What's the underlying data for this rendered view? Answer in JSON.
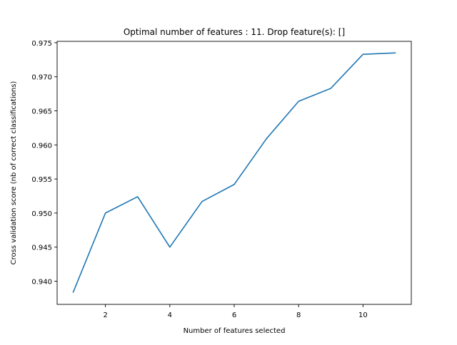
{
  "chart_data": {
    "type": "line",
    "title": "Optimal number of features : 11. Drop feature(s): []",
    "xlabel": "Number of features selected",
    "ylabel": "Cross validation score (nb of correct classifications)",
    "xlim": [
      0.5,
      11.5
    ],
    "ylim": [
      0.9366,
      0.9752
    ],
    "xticks": [
      2,
      4,
      6,
      8,
      10
    ],
    "yticks": [
      0.94,
      0.945,
      0.95,
      0.955,
      0.96,
      0.965,
      0.97,
      0.975
    ],
    "ytick_labels": [
      "0.940",
      "0.945",
      "0.950",
      "0.955",
      "0.960",
      "0.965",
      "0.970",
      "0.975"
    ],
    "grid": false,
    "series": [
      {
        "color": "#1f77b4",
        "x": [
          1,
          2,
          3,
          4,
          5,
          6,
          7,
          8,
          9,
          10,
          11
        ],
        "values": [
          0.9384,
          0.95,
          0.9524,
          0.945,
          0.9517,
          0.9542,
          0.9609,
          0.9664,
          0.9683,
          0.9733,
          0.9735
        ]
      }
    ]
  }
}
